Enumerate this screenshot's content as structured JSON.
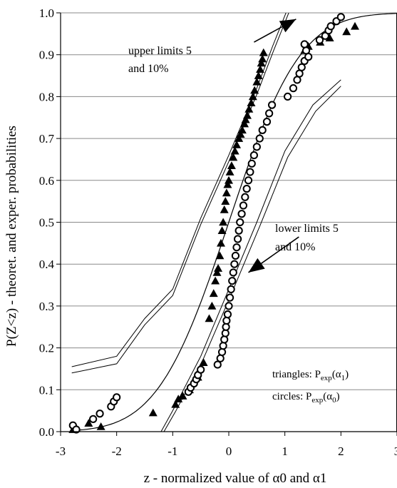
{
  "chart_data": {
    "type": "scatter",
    "title": "",
    "xlabel": "z - normalized value of α0 and α1",
    "ylabel": "P(Z<z) - theoret. and exper. probabilities",
    "xlim": [
      -3,
      3
    ],
    "ylim": [
      0,
      1
    ],
    "x_ticks": [
      "-3",
      "-2",
      "-1",
      "0",
      "1",
      "2",
      "3"
    ],
    "y_ticks": [
      "0.0",
      "0.1",
      "0.2",
      "0.3",
      "0.4",
      "0.5",
      "0.6",
      "0.7",
      "0.8",
      "0.9",
      "1.0"
    ],
    "grid": "horizontal",
    "colors": {
      "lines": "#000000",
      "background": "#ffffff"
    },
    "annotations": {
      "upper_line1": "upper limits 5",
      "upper_line2": "and 10%",
      "lower_line1": "lower limits 5",
      "lower_line2": "and 10%"
    },
    "legend": {
      "triangles_prefix": "triangles: P",
      "triangles_sub1": "exp",
      "triangles_mid": "(α",
      "triangles_sub2": "1",
      "triangles_suffix": ")",
      "circles_prefix": "circles: P",
      "circles_sub1": "exp",
      "circles_mid": "(α",
      "circles_sub2": "0",
      "circles_suffix": ")"
    },
    "series": [
      {
        "marker": "triangle",
        "points": [
          [
            -2.78,
            0.005
          ],
          [
            -2.72,
            0.008
          ],
          [
            -2.5,
            0.02
          ],
          [
            -2.28,
            0.012
          ],
          [
            -1.35,
            0.045
          ],
          [
            -0.95,
            0.065
          ],
          [
            -0.9,
            0.078
          ],
          [
            -0.82,
            0.085
          ],
          [
            -0.7,
            0.1
          ],
          [
            -0.55,
            0.13
          ],
          [
            -0.45,
            0.165
          ],
          [
            -0.35,
            0.27
          ],
          [
            -0.3,
            0.3
          ],
          [
            -0.27,
            0.33
          ],
          [
            -0.24,
            0.36
          ],
          [
            -0.21,
            0.38
          ],
          [
            -0.19,
            0.39
          ],
          [
            -0.16,
            0.42
          ],
          [
            -0.14,
            0.45
          ],
          [
            -0.12,
            0.48
          ],
          [
            -0.1,
            0.5
          ],
          [
            -0.08,
            0.53
          ],
          [
            -0.06,
            0.55
          ],
          [
            -0.04,
            0.57
          ],
          [
            -0.02,
            0.59
          ],
          [
            0.0,
            0.6
          ],
          [
            0.02,
            0.62
          ],
          [
            0.05,
            0.635
          ],
          [
            0.08,
            0.655
          ],
          [
            0.11,
            0.67
          ],
          [
            0.14,
            0.685
          ],
          [
            0.18,
            0.7
          ],
          [
            0.21,
            0.71
          ],
          [
            0.24,
            0.72
          ],
          [
            0.28,
            0.735
          ],
          [
            0.3,
            0.745
          ],
          [
            0.33,
            0.755
          ],
          [
            0.36,
            0.77
          ],
          [
            0.4,
            0.785
          ],
          [
            0.43,
            0.8
          ],
          [
            0.46,
            0.815
          ],
          [
            0.5,
            0.835
          ],
          [
            0.53,
            0.85
          ],
          [
            0.56,
            0.865
          ],
          [
            0.58,
            0.88
          ],
          [
            0.6,
            0.89
          ],
          [
            0.62,
            0.905
          ],
          [
            1.35,
            0.91
          ],
          [
            1.42,
            0.92
          ],
          [
            1.63,
            0.93
          ],
          [
            1.8,
            0.94
          ],
          [
            2.1,
            0.955
          ],
          [
            2.25,
            0.968
          ]
        ]
      },
      {
        "marker": "circle",
        "points": [
          [
            -2.78,
            0.015
          ],
          [
            -2.72,
            0.005
          ],
          [
            -2.42,
            0.03
          ],
          [
            -2.3,
            0.043
          ],
          [
            -2.1,
            0.06
          ],
          [
            -2.05,
            0.072
          ],
          [
            -2.0,
            0.082
          ],
          [
            -0.72,
            0.095
          ],
          [
            -0.68,
            0.105
          ],
          [
            -0.62,
            0.115
          ],
          [
            -0.58,
            0.125
          ],
          [
            -0.55,
            0.135
          ],
          [
            -0.5,
            0.148
          ],
          [
            -0.2,
            0.16
          ],
          [
            -0.15,
            0.175
          ],
          [
            -0.12,
            0.19
          ],
          [
            -0.1,
            0.205
          ],
          [
            -0.08,
            0.22
          ],
          [
            -0.06,
            0.235
          ],
          [
            -0.05,
            0.25
          ],
          [
            -0.04,
            0.265
          ],
          [
            -0.02,
            0.28
          ],
          [
            0.0,
            0.3
          ],
          [
            0.02,
            0.32
          ],
          [
            0.04,
            0.34
          ],
          [
            0.06,
            0.36
          ],
          [
            0.08,
            0.38
          ],
          [
            0.1,
            0.4
          ],
          [
            0.12,
            0.42
          ],
          [
            0.14,
            0.44
          ],
          [
            0.16,
            0.46
          ],
          [
            0.18,
            0.48
          ],
          [
            0.2,
            0.5
          ],
          [
            0.23,
            0.52
          ],
          [
            0.26,
            0.54
          ],
          [
            0.29,
            0.56
          ],
          [
            0.32,
            0.58
          ],
          [
            0.35,
            0.6
          ],
          [
            0.38,
            0.62
          ],
          [
            0.41,
            0.64
          ],
          [
            0.45,
            0.66
          ],
          [
            0.5,
            0.68
          ],
          [
            0.55,
            0.7
          ],
          [
            0.6,
            0.72
          ],
          [
            0.68,
            0.74
          ],
          [
            0.72,
            0.76
          ],
          [
            0.77,
            0.78
          ],
          [
            1.05,
            0.8
          ],
          [
            1.15,
            0.82
          ],
          [
            1.22,
            0.84
          ],
          [
            1.26,
            0.855
          ],
          [
            1.3,
            0.87
          ],
          [
            1.35,
            0.885
          ],
          [
            1.42,
            0.895
          ],
          [
            1.38,
            0.91
          ],
          [
            1.35,
            0.925
          ],
          [
            1.62,
            0.935
          ],
          [
            1.72,
            0.945
          ],
          [
            1.78,
            0.958
          ],
          [
            1.82,
            0.968
          ],
          [
            1.92,
            0.98
          ],
          [
            2.0,
            0.99
          ]
        ]
      }
    ],
    "curves": {
      "theoretical_cdf_from": -2.7,
      "theoretical_cdf_to": 3.0,
      "upper_limits": [
        [
          [
            -2.8,
            0.155
          ],
          [
            -2.0,
            0.18
          ],
          [
            -1.5,
            0.27
          ],
          [
            -1.0,
            0.34
          ],
          [
            -0.5,
            0.51
          ],
          [
            0.0,
            0.66
          ],
          [
            0.5,
            0.82
          ],
          [
            0.78,
            0.92
          ],
          [
            1.05,
            1.01
          ]
        ],
        [
          [
            -2.8,
            0.14
          ],
          [
            -2.0,
            0.162
          ],
          [
            -1.5,
            0.255
          ],
          [
            -1.0,
            0.325
          ],
          [
            -0.5,
            0.495
          ],
          [
            0.0,
            0.645
          ],
          [
            0.5,
            0.805
          ],
          [
            0.8,
            0.91
          ],
          [
            1.1,
            1.01
          ]
        ]
      ],
      "lower_limits": [
        [
          [
            -1.25,
            -0.01
          ],
          [
            -1.0,
            0.05
          ],
          [
            -0.5,
            0.18
          ],
          [
            0.0,
            0.34
          ],
          [
            0.5,
            0.5
          ],
          [
            1.0,
            0.67
          ],
          [
            1.5,
            0.78
          ],
          [
            2.0,
            0.84
          ]
        ],
        [
          [
            -1.2,
            -0.01
          ],
          [
            -0.95,
            0.048
          ],
          [
            -0.45,
            0.175
          ],
          [
            0.05,
            0.33
          ],
          [
            0.55,
            0.49
          ],
          [
            1.05,
            0.655
          ],
          [
            1.55,
            0.765
          ],
          [
            2.0,
            0.825
          ]
        ]
      ],
      "arrow_upper": [
        [
          0.45,
          0.93
        ],
        [
          1.2,
          0.985
        ]
      ],
      "arrow_lower": [
        [
          1.25,
          0.465
        ],
        [
          0.35,
          0.38
        ]
      ]
    }
  }
}
